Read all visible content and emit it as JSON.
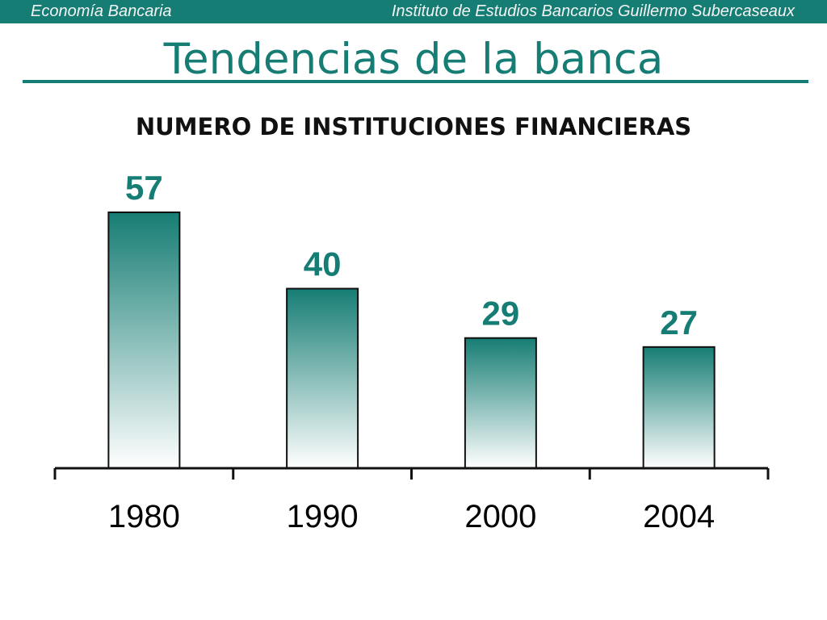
{
  "header": {
    "left": "Economía Bancaria",
    "right": "Instituto de Estudios Bancarios Guillermo Subercaseaux"
  },
  "slide": {
    "title": "Tendencias de la banca"
  },
  "colors": {
    "accent": "#167d74",
    "bar_top": "#167d74",
    "bar_bottom": "#ffffff"
  },
  "chart_data": {
    "type": "bar",
    "title": "NUMERO DE INSTITUCIONES FINANCIERAS",
    "categories": [
      "1980",
      "1990",
      "2000",
      "2004"
    ],
    "values": [
      57,
      40,
      29,
      27
    ],
    "xlabel": "",
    "ylabel": "",
    "ylim": [
      0,
      57
    ],
    "grid": false,
    "legend": "none"
  }
}
